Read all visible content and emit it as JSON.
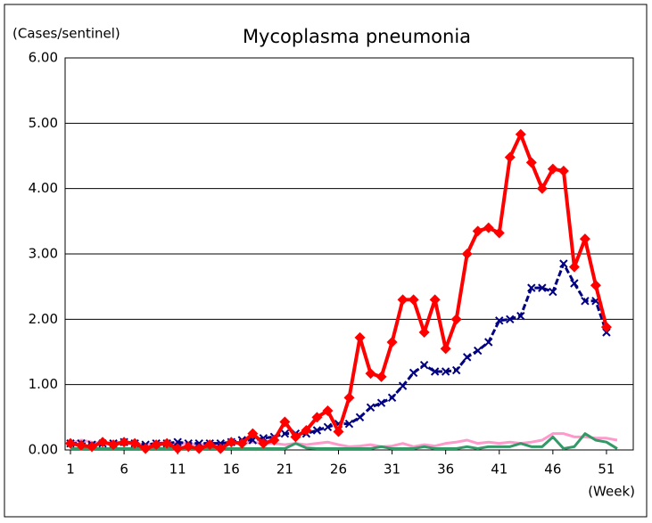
{
  "chart_data": {
    "type": "line",
    "title": "Mycoplasma pneumonia",
    "y_label": "(Cases/sentinel)",
    "x_label": "(Week)",
    "x": [
      1,
      2,
      3,
      4,
      5,
      6,
      7,
      8,
      9,
      10,
      11,
      12,
      13,
      14,
      15,
      16,
      17,
      18,
      19,
      20,
      21,
      22,
      23,
      24,
      25,
      26,
      27,
      28,
      29,
      30,
      31,
      32,
      33,
      34,
      35,
      36,
      37,
      38,
      39,
      40,
      41,
      42,
      43,
      44,
      45,
      46,
      47,
      48,
      49,
      50,
      51,
      52
    ],
    "xlim": [
      0.5,
      53.5
    ],
    "xticks": [
      1,
      6,
      11,
      16,
      21,
      26,
      31,
      36,
      41,
      46,
      51
    ],
    "ylim": [
      0,
      6
    ],
    "yticks": [
      {
        "value": 0,
        "label": "0.00"
      },
      {
        "value": 1,
        "label": "1.00"
      },
      {
        "value": 2,
        "label": "2.00"
      },
      {
        "value": 3,
        "label": "3.00"
      },
      {
        "value": 4,
        "label": "4.00"
      },
      {
        "value": 5,
        "label": "5.00"
      },
      {
        "value": 6,
        "label": "6.00"
      }
    ],
    "grid": true,
    "series": [
      {
        "color": "#ff99cc",
        "width": 3,
        "values": [
          0.1,
          0.15,
          0.12,
          0.1,
          0.12,
          0.1,
          0.1,
          0.08,
          0.1,
          0.12,
          0.1,
          0.1,
          0.08,
          0.1,
          0.1,
          0.12,
          0.1,
          0.12,
          0.1,
          0.1,
          0.08,
          0.1,
          0.08,
          0.1,
          0.12,
          0.08,
          0.05,
          0.06,
          0.08,
          0.05,
          0.06,
          0.1,
          0.05,
          0.08,
          0.06,
          0.1,
          0.12,
          0.15,
          0.1,
          0.12,
          0.1,
          0.12,
          0.1,
          0.12,
          0.15,
          0.25,
          0.25,
          0.2,
          0.2,
          0.18,
          0.18,
          0.15
        ]
      },
      {
        "color": "#339966",
        "width": 3,
        "values": [
          0.02,
          0.02,
          0.02,
          0.02,
          0.02,
          0.02,
          0.02,
          0.02,
          0.02,
          0.02,
          0.02,
          0.02,
          0.02,
          0.02,
          0.02,
          0.02,
          0.02,
          0.02,
          0.02,
          0.02,
          0.02,
          0.1,
          0.03,
          0.02,
          0.02,
          0.02,
          0.02,
          0.02,
          0.02,
          0.05,
          0.02,
          0.02,
          0.02,
          0.05,
          0.02,
          0.02,
          0.02,
          0.05,
          0.02,
          0.05,
          0.05,
          0.05,
          0.1,
          0.05,
          0.05,
          0.2,
          0.02,
          0.05,
          0.25,
          0.15,
          0.12,
          0.02
        ]
      },
      {
        "color": "#000080",
        "width": 3,
        "dash": true,
        "marker": "x",
        "values": [
          0.1,
          0.1,
          0.08,
          0.1,
          0.1,
          0.12,
          0.1,
          0.08,
          0.1,
          0.1,
          0.12,
          0.1,
          0.1,
          0.1,
          0.1,
          0.12,
          0.15,
          0.15,
          0.18,
          0.2,
          0.25,
          0.25,
          0.25,
          0.3,
          0.35,
          0.4,
          0.4,
          0.5,
          0.65,
          0.72,
          0.8,
          0.98,
          1.18,
          1.3,
          1.2,
          1.2,
          1.22,
          1.42,
          1.52,
          1.65,
          1.98,
          2.0,
          2.05,
          2.48,
          2.48,
          2.42,
          2.85,
          2.55,
          2.28,
          2.28,
          1.8,
          null
        ]
      },
      {
        "color": "#ff0000",
        "width": 4,
        "marker": "diamond",
        "values": [
          0.1,
          0.07,
          0.05,
          0.12,
          0.08,
          0.12,
          0.1,
          0.02,
          0.08,
          0.1,
          0.02,
          0.05,
          0.02,
          0.08,
          0.02,
          0.12,
          0.1,
          0.25,
          0.1,
          0.15,
          0.43,
          0.2,
          0.3,
          0.5,
          0.6,
          0.28,
          0.8,
          1.72,
          1.17,
          1.12,
          1.65,
          2.3,
          2.3,
          1.8,
          2.3,
          1.55,
          2.0,
          3.0,
          3.35,
          3.4,
          3.32,
          4.48,
          4.83,
          4.4,
          4.0,
          4.3,
          4.27,
          2.8,
          3.23,
          2.52,
          1.88,
          null
        ]
      }
    ]
  }
}
